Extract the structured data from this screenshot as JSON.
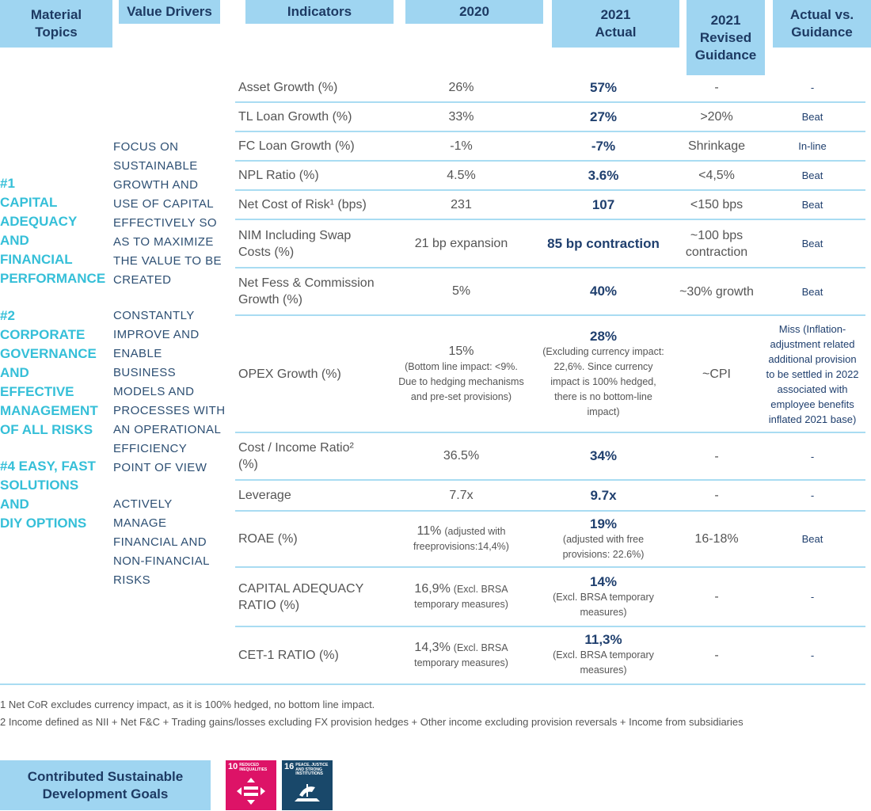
{
  "header": {
    "columns": [
      [
        "Material",
        "Topics"
      ],
      [
        "Value Drivers"
      ],
      [
        "Indicators"
      ],
      [
        "2020"
      ],
      [
        "2021",
        "Actual"
      ],
      [
        "2021",
        "Revised",
        "Guidance"
      ],
      [
        "Actual vs.",
        "Guidance"
      ]
    ]
  },
  "material_topics": [
    [
      "#1",
      "CAPITAL",
      "ADEQUACY",
      "AND",
      "FINANCIAL",
      "PERFORMANCE"
    ],
    [
      "#2",
      "CORPORATE",
      "GOVERNANCE",
      "AND",
      "EFFECTIVE",
      "MANAGEMENT",
      "OF ALL RISKS"
    ],
    [
      "#4 EASY, FAST",
      "SOLUTIONS",
      "AND",
      "DIY OPTIONS"
    ]
  ],
  "value_drivers": [
    [
      "FOCUS ON",
      "SUSTAINABLE",
      "GROWTH AND",
      "USE OF CAPITAL",
      "EFFECTIVELY SO",
      "AS TO MAXIMIZE",
      "THE VALUE TO BE",
      "CREATED"
    ],
    [
      "CONSTANTLY",
      "IMPROVE AND",
      "ENABLE",
      "BUSINESS",
      "MODELS AND",
      "PROCESSES WITH",
      "AN OPERATIONAL",
      "EFFICIENCY",
      "POINT OF VIEW"
    ],
    [
      "ACTIVELY",
      "MANAGE",
      "FINANCIAL AND",
      "NON-FINANCIAL",
      "RISKS"
    ]
  ],
  "table": {
    "rows": [
      {
        "indicator": [
          "Asset Growth (%)"
        ],
        "y2020": {
          "main": "26%"
        },
        "y2021": {
          "main": "57%"
        },
        "guidance": [
          "-"
        ],
        "vs": [
          "-"
        ]
      },
      {
        "indicator": [
          "TL Loan Growth (%)"
        ],
        "y2020": {
          "main": "33%"
        },
        "y2021": {
          "main": "27%"
        },
        "guidance": [
          ">20%"
        ],
        "vs": [
          "Beat"
        ]
      },
      {
        "indicator": [
          "FC Loan Growth (%)"
        ],
        "y2020": {
          "main": "-1%"
        },
        "y2021": {
          "main": "-7%"
        },
        "guidance": [
          "Shrinkage"
        ],
        "vs": [
          "In-line"
        ]
      },
      {
        "indicator": [
          "NPL Ratio (%)"
        ],
        "y2020": {
          "main": "4.5%"
        },
        "y2021": {
          "main": "3.6%"
        },
        "guidance": [
          "<4,5%"
        ],
        "vs": [
          "Beat"
        ]
      },
      {
        "indicator": [
          "Net Cost of Risk¹ (bps)"
        ],
        "y2020": {
          "main": "231"
        },
        "y2021": {
          "main": "107"
        },
        "guidance": [
          "<150 bps"
        ],
        "vs": [
          "Beat"
        ]
      },
      {
        "indicator": [
          "NIM Including Swap",
          "Costs (%)"
        ],
        "y2020": {
          "main": "21 bp expansion"
        },
        "y2021": {
          "main": "85 bp contraction"
        },
        "guidance": [
          "~100 bps",
          "contraction"
        ],
        "vs": [
          "Beat"
        ]
      },
      {
        "indicator": [
          "Net Fess & Commission",
          "Growth (%)"
        ],
        "y2020": {
          "main": "5%"
        },
        "y2021": {
          "main": "40%"
        },
        "guidance": [
          "~30% growth"
        ],
        "vs": [
          "Beat"
        ]
      },
      {
        "indicator": [
          "OPEX Growth (%)"
        ],
        "y2020": {
          "main": "15%",
          "note": [
            "(Bottom line impact: <9%.",
            "Due to hedging mechanisms",
            "and pre-set provisions)"
          ]
        },
        "y2021": {
          "main": "28%",
          "note": [
            "(Excluding currency impact:",
            "22,6%. Since currency",
            "impact is 100% hedged,",
            "there is no bottom-line",
            "impact)"
          ]
        },
        "guidance": [
          "~CPI"
        ],
        "vs": [
          "Miss (Inflation-",
          "adjustment related",
          "additional provision",
          "to be settled in 2022",
          "associated with",
          "employee benefits",
          "inflated 2021 base)"
        ]
      },
      {
        "indicator": [
          "Cost / Income Ratio²",
          "(%)"
        ],
        "y2020": {
          "main": "36.5%"
        },
        "y2021": {
          "main": "34%"
        },
        "guidance": [
          "-"
        ],
        "vs": [
          "-"
        ]
      },
      {
        "indicator": [
          "Leverage"
        ],
        "y2020": {
          "main": "7.7x"
        },
        "y2021": {
          "main": "9.7x"
        },
        "guidance": [
          "-"
        ],
        "vs": [
          "-"
        ]
      },
      {
        "indicator": [
          "ROAE (%)"
        ],
        "y2020": {
          "main": "11%",
          "note_inline": "(adjusted with",
          "note": [
            "freeprovisions:14,4%)"
          ]
        },
        "y2021": {
          "main": "19%",
          "note": [
            "(adjusted with free",
            "provisions: 22.6%)"
          ]
        },
        "guidance": [
          "16-18%"
        ],
        "vs": [
          "Beat"
        ]
      },
      {
        "indicator": [
          "CAPITAL ADEQUACY",
          "RATIO (%)"
        ],
        "y2020": {
          "main": "16,9%",
          "note_inline": "(Excl. BRSA",
          "note": [
            "temporary measures)"
          ]
        },
        "y2021": {
          "main": "14%",
          "note": [
            "(Excl. BRSA temporary",
            "measures)"
          ]
        },
        "guidance": [
          "-"
        ],
        "vs": [
          "-"
        ]
      },
      {
        "indicator": [
          "CET-1 RATIO (%)"
        ],
        "y2020": {
          "main": "14,3%",
          "note_inline": "(Excl. BRSA",
          "note": [
            "temporary measures)"
          ]
        },
        "y2021": {
          "main": "11,3%",
          "note": [
            "(Excl. BRSA temporary",
            "measures)"
          ]
        },
        "guidance": [
          "-"
        ],
        "vs": [
          "-"
        ]
      }
    ]
  },
  "footnotes": [
    "1 Net CoR excludes currency impact, as it is 100% hedged, no bottom line impact.",
    "2 Income defined as NII + Net F&C + Trading gains/losses excluding FX provision hedges + Other income excluding provision reversals + Income from subsidiaries"
  ],
  "sdg": {
    "title": [
      "Contributed Sustainable",
      "Development Goals"
    ],
    "goals": [
      {
        "number": "10",
        "name": [
          "REDUCED",
          "INEQUALITIES"
        ]
      },
      {
        "number": "16",
        "name": [
          "PEACE, JUSTICE",
          "AND STRONG",
          "INSTITUTIONS"
        ]
      }
    ]
  }
}
